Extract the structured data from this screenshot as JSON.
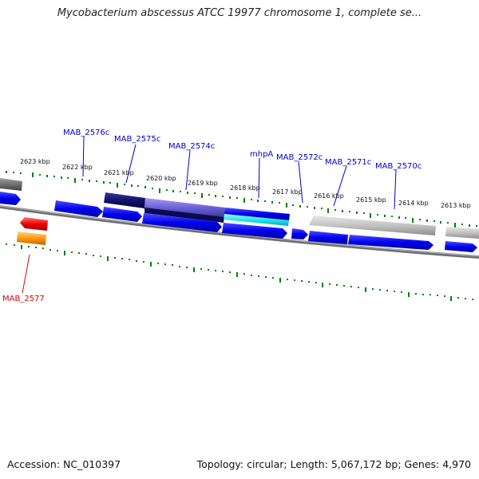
{
  "title": "Mycobacterium abscessus ATCC 19977 chromosome 1, complete se...",
  "footer": {
    "accession": "Accession: NC_010397",
    "summary": "Topology: circular; Length: 5,067,172 bp; Genes: 4,970"
  },
  "colors": {
    "forward_track": "#0000e6",
    "reverse_label": "#0000cc",
    "highlight_label": "#dd0000",
    "tick": "#008000",
    "backbone": "#808080"
  },
  "ticks": [
    {
      "label": "2623 kbp"
    },
    {
      "label": "2622 kbp"
    },
    {
      "label": "2621 kbp"
    },
    {
      "label": "2620 kbp"
    },
    {
      "label": "2619 kbp"
    },
    {
      "label": "2618 kbp"
    },
    {
      "label": "2617 kbp"
    },
    {
      "label": "2616 kbp"
    },
    {
      "label": "2615 kbp"
    },
    {
      "label": "2614 kbp"
    },
    {
      "label": "2613 kbp"
    }
  ],
  "gene_labels": [
    {
      "name": "MAB_2576c",
      "color": "#0000cc"
    },
    {
      "name": "MAB_2575c",
      "color": "#0000cc"
    },
    {
      "name": "MAB_2574c",
      "color": "#0000cc"
    },
    {
      "name": "mhpA",
      "color": "#0000cc"
    },
    {
      "name": "MAB_2572c",
      "color": "#0000cc"
    },
    {
      "name": "MAB_2571c",
      "color": "#0000cc"
    },
    {
      "name": "MAB_2570c",
      "color": "#0000cc"
    },
    {
      "name": "MAB_2577",
      "color": "#dd0000"
    }
  ]
}
